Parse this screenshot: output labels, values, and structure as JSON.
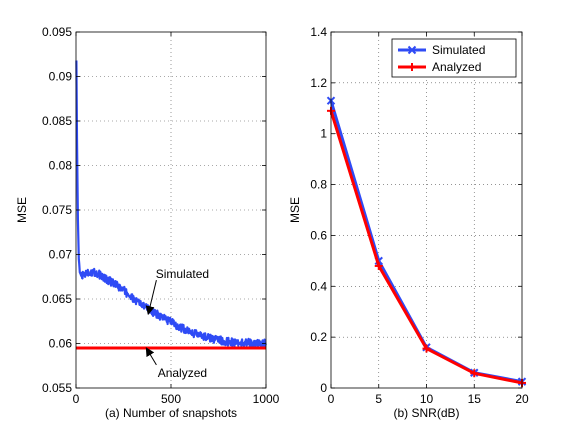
{
  "chart_data": [
    {
      "type": "line",
      "xlabel": "(a) Number of snapshots",
      "ylabel": "MSE",
      "xlim": [
        0,
        1000
      ],
      "ylim": [
        0.055,
        0.095
      ],
      "xticks": [
        0,
        500,
        1000
      ],
      "xtick_labels": [
        "0",
        "500",
        "1000"
      ],
      "yticks": [
        0.055,
        0.06,
        0.065,
        0.07,
        0.075,
        0.08,
        0.085,
        0.09,
        0.095
      ],
      "ytick_labels": [
        "0.055",
        "0.06",
        "0.065",
        "0.07",
        "0.075",
        "0.08",
        "0.085",
        "0.09",
        "0.095"
      ],
      "grid": true,
      "series": [
        {
          "name": "Simulated",
          "color": "#2f4bf5",
          "x": [
            2,
            5,
            10,
            15,
            20,
            30,
            40,
            60,
            80,
            100,
            120,
            140,
            160,
            180,
            200,
            250,
            300,
            350,
            400,
            450,
            500,
            550,
            600,
            650,
            700,
            750,
            800,
            850,
            900,
            950,
            1000
          ],
          "values": [
            0.0918,
            0.083,
            0.074,
            0.0695,
            0.068,
            0.0675,
            0.0677,
            0.068,
            0.068,
            0.068,
            0.0678,
            0.0675,
            0.0672,
            0.067,
            0.0667,
            0.066,
            0.065,
            0.0643,
            0.0636,
            0.063,
            0.0624,
            0.0618,
            0.0613,
            0.0609,
            0.0606,
            0.0604,
            0.0602,
            0.0601,
            0.0601,
            0.06,
            0.06
          ],
          "noise": 0.0009
        },
        {
          "name": "Analyzed",
          "color": "#ff0000",
          "x": [
            0,
            1000
          ],
          "values": [
            0.0595,
            0.0595
          ]
        }
      ],
      "annotations": [
        {
          "text": "Simulated",
          "text_x": 560,
          "text_y": 0.0678,
          "arrow_x": 380,
          "arrow_y": 0.0633
        },
        {
          "text": "Analyzed",
          "text_x": 560,
          "text_y": 0.0567,
          "arrow_x": 370,
          "arrow_y": 0.0595
        }
      ]
    },
    {
      "type": "line",
      "xlabel": "(b) SNR(dB)",
      "ylabel": "MSE",
      "xlim": [
        0,
        20
      ],
      "ylim": [
        0,
        1.4
      ],
      "xticks": [
        0,
        5,
        10,
        15,
        20
      ],
      "xtick_labels": [
        "0",
        "5",
        "10",
        "15",
        "20"
      ],
      "yticks": [
        0,
        0.2,
        0.4,
        0.6,
        0.8,
        1,
        1.2,
        1.4
      ],
      "ytick_labels": [
        "0",
        "0.2",
        "0.4",
        "0.6",
        "0.8",
        "1",
        "1.2",
        "1.4"
      ],
      "grid": true,
      "legend": "top-right",
      "series": [
        {
          "name": "Simulated",
          "color": "#2f4bf5",
          "marker": "x",
          "x": [
            0,
            5,
            10,
            15,
            20
          ],
          "values": [
            1.13,
            0.5,
            0.16,
            0.06,
            0.025
          ]
        },
        {
          "name": "Analyzed",
          "color": "#ff0000",
          "marker": "+",
          "x": [
            0,
            5,
            10,
            15,
            20
          ],
          "values": [
            1.09,
            0.48,
            0.155,
            0.058,
            0.02
          ]
        }
      ]
    }
  ]
}
